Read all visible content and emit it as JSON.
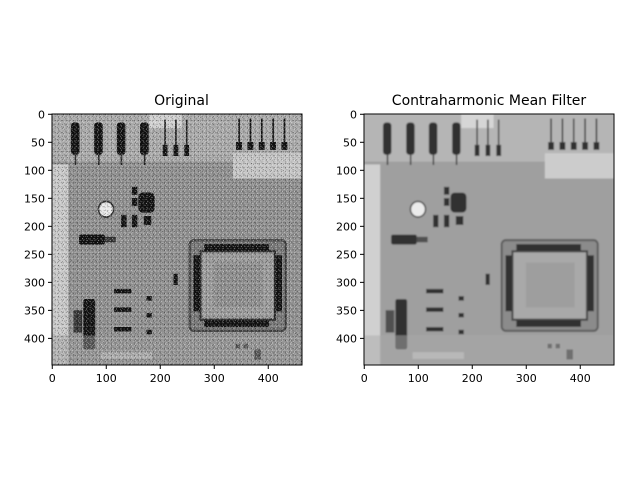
{
  "figure": {
    "background": "#ffffff",
    "panels": [
      {
        "title": "Original",
        "image_style": "noisy",
        "x_ticks": [
          "0",
          "100",
          "200",
          "300",
          "400"
        ],
        "y_ticks": [
          "0",
          "50",
          "100",
          "150",
          "200",
          "250",
          "300",
          "350",
          "400"
        ]
      },
      {
        "title": "Contraharmonic Mean Filter",
        "image_style": "filtered",
        "x_ticks": [
          "0",
          "100",
          "200",
          "300",
          "400"
        ],
        "y_ticks": [
          "0",
          "50",
          "100",
          "150",
          "200",
          "250",
          "300",
          "350",
          "400"
        ]
      }
    ]
  },
  "colors": {
    "board": "#8c8c8c",
    "dark": "#1a1a1a",
    "light": "#d8d8d8",
    "noise_white": "#ffffff",
    "noise_black": "#000000"
  }
}
